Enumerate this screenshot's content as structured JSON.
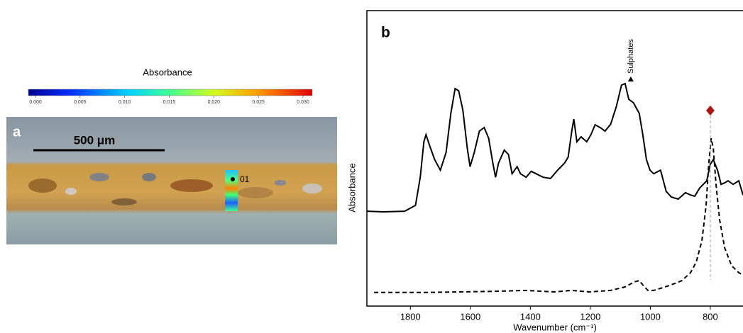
{
  "panel_a": {
    "label": "a",
    "scalebar": "500 μm",
    "point_label": "01",
    "colorbar": {
      "title": "Absorbance",
      "lim": [
        0,
        0.03
      ],
      "ticks": [
        {
          "value": 0,
          "label": "0.000"
        },
        {
          "value": 0.005,
          "label": "0.005"
        },
        {
          "value": 0.01,
          "label": "0.010"
        },
        {
          "value": 0.015,
          "label": "0.015"
        },
        {
          "value": 0.02,
          "label": "0.020"
        },
        {
          "value": 0.025,
          "label": "0.025"
        },
        {
          "value": 0.03,
          "label": "0.030"
        }
      ]
    }
  },
  "chart_data": {
    "type": "line",
    "panel_label": "b",
    "x_label": "Wavenumber (cm⁻¹)",
    "y_label": "Absorbance",
    "xlim": [
      1945,
      691
    ],
    "ylim": [
      0,
      1
    ],
    "xticks": [
      1800,
      1600,
      1400,
      1200,
      1000,
      800
    ],
    "annotations": [
      {
        "text": "Sulphates",
        "x": 1084
      }
    ],
    "marker": {
      "x": 800,
      "color": "#b01515"
    },
    "series": [
      {
        "color": "#000000",
        "line_style": "solid",
        "x": [
          1945,
          1890,
          1819,
          1783,
          1767,
          1755,
          1748,
          1736,
          1719,
          1700,
          1681,
          1665,
          1651,
          1639,
          1625,
          1610,
          1601,
          1587,
          1570,
          1554,
          1539,
          1525,
          1516,
          1506,
          1487,
          1473,
          1461,
          1444,
          1433,
          1414,
          1397,
          1381,
          1357,
          1333,
          1309,
          1286,
          1274,
          1262,
          1255,
          1245,
          1231,
          1212,
          1198,
          1184,
          1167,
          1151,
          1132,
          1113,
          1096,
          1084,
          1072,
          1056,
          1037,
          1025,
          1013,
          1001,
          989,
          966,
          947,
          930,
          907,
          883,
          866,
          852,
          835,
          812,
          800,
          790,
          776,
          764,
          752,
          741,
          724,
          705,
          691
        ],
        "values": [
          0.321,
          0.319,
          0.321,
          0.341,
          0.436,
          0.556,
          0.58,
          0.544,
          0.496,
          0.46,
          0.52,
          0.652,
          0.736,
          0.729,
          0.664,
          0.532,
          0.472,
          0.52,
          0.592,
          0.604,
          0.568,
          0.484,
          0.436,
          0.484,
          0.528,
          0.513,
          0.448,
          0.472,
          0.448,
          0.436,
          0.456,
          0.448,
          0.436,
          0.432,
          0.46,
          0.484,
          0.504,
          0.592,
          0.633,
          0.556,
          0.573,
          0.556,
          0.58,
          0.614,
          0.604,
          0.592,
          0.616,
          0.676,
          0.748,
          0.753,
          0.7,
          0.688,
          0.652,
          0.58,
          0.496,
          0.46,
          0.448,
          0.46,
          0.388,
          0.369,
          0.362,
          0.384,
          0.376,
          0.372,
          0.4,
          0.424,
          0.48,
          0.496,
          0.46,
          0.412,
          0.417,
          0.424,
          0.412,
          0.424,
          0.376
        ]
      },
      {
        "color": "#000000",
        "line_style": "dashed",
        "x": [
          1921,
          1748,
          1511,
          1416,
          1321,
          1262,
          1203,
          1132,
          1084,
          1053,
          1037,
          1025,
          1008,
          989,
          966,
          930,
          895,
          866,
          847,
          828,
          814,
          805,
          797,
          790,
          781,
          769,
          752,
          729,
          705,
          691
        ],
        "values": [
          0.046,
          0.046,
          0.05,
          0.053,
          0.048,
          0.053,
          0.048,
          0.053,
          0.065,
          0.082,
          0.086,
          0.072,
          0.053,
          0.053,
          0.06,
          0.072,
          0.086,
          0.113,
          0.149,
          0.221,
          0.341,
          0.484,
          0.568,
          0.532,
          0.412,
          0.293,
          0.197,
          0.137,
          0.113,
          0.106
        ]
      }
    ]
  }
}
